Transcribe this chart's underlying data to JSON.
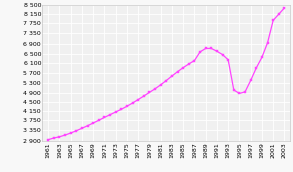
{
  "years": [
    1961,
    1962,
    1963,
    1964,
    1965,
    1966,
    1967,
    1968,
    1969,
    1970,
    1971,
    1972,
    1973,
    1974,
    1975,
    1976,
    1977,
    1978,
    1979,
    1980,
    1981,
    1982,
    1983,
    1984,
    1985,
    1986,
    1987,
    1988,
    1989,
    1990,
    1991,
    1992,
    1993,
    1994,
    1995,
    1996,
    1997,
    1998,
    1999,
    2000,
    2001,
    2002,
    2003
  ],
  "population": [
    2955,
    3025,
    3074,
    3146,
    3229,
    3323,
    3425,
    3531,
    3641,
    3755,
    3874,
    3985,
    4098,
    4208,
    4333,
    4466,
    4608,
    4754,
    4905,
    5052,
    5216,
    5393,
    5580,
    5757,
    5925,
    6076,
    6216,
    6574,
    6716,
    6716,
    6601,
    6462,
    6249,
    5004,
    4862,
    4927,
    5398,
    5916,
    6352,
    6953,
    7874,
    8131,
    8387
  ],
  "line_color": "#ff44ff",
  "marker_color": "#ff44ff",
  "marker": "s",
  "markersize": 1.8,
  "linewidth": 0.9,
  "ylim": [
    2900,
    8500
  ],
  "ytick_values": [
    2900,
    3350,
    3750,
    4150,
    4500,
    4900,
    5300,
    5700,
    6100,
    6500,
    6900,
    7350,
    7750,
    8150,
    8500
  ],
  "ytick_labels": [
    "2 900",
    "3 350",
    "3 750",
    "4 150",
    "4 500",
    "4 900",
    "5 300",
    "5 700",
    "6 100",
    "6 500",
    "6 900",
    "7 350",
    "7 750",
    "8 150",
    "8 500"
  ],
  "xtick_years": [
    1961,
    1963,
    1965,
    1967,
    1969,
    1971,
    1973,
    1975,
    1977,
    1979,
    1981,
    1983,
    1985,
    1987,
    1989,
    1991,
    1993,
    1995,
    1997,
    1999,
    2001,
    2003
  ],
  "background_color": "#f8f8f8",
  "plot_bg_color": "#f0f0f0",
  "grid_color": "#ffffff",
  "tick_fontsize": 4.5,
  "xlim": [
    1960,
    2004
  ]
}
